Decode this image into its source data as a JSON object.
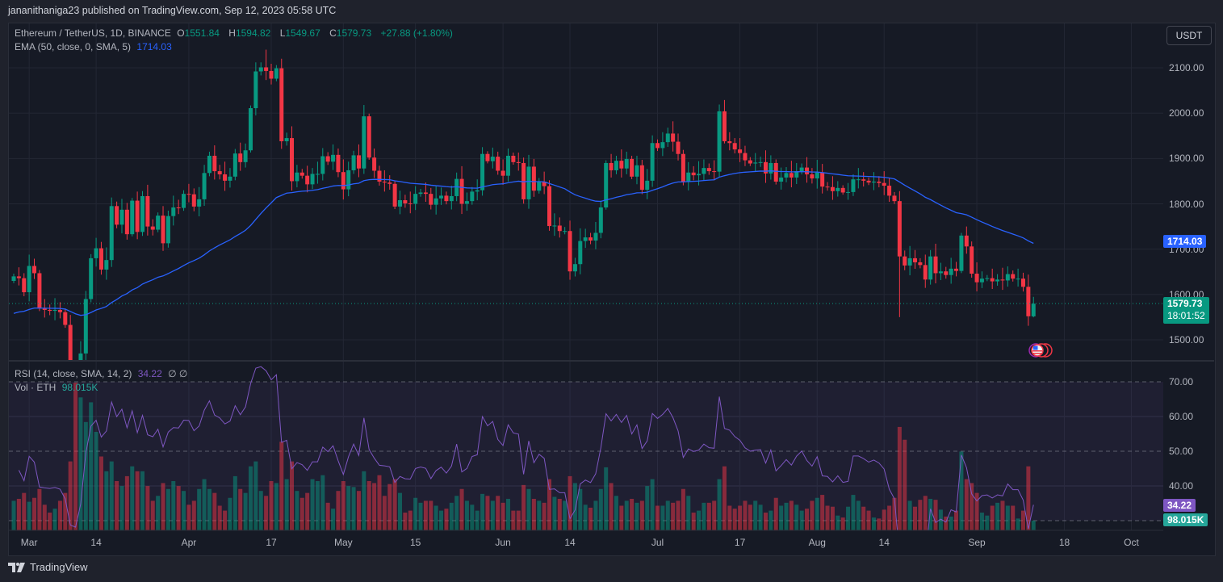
{
  "publisher_line": "jananithaniga23 published on TradingView.com, Sep 12, 2023 05:58 UTC",
  "legend": {
    "symbol": "Ethereum / TetherUS, 1D, BINANCE",
    "o_label": "O",
    "o": "1551.84",
    "h_label": "H",
    "h": "1594.82",
    "l_label": "L",
    "l": "1549.67",
    "c_label": "C",
    "c": "1579.73",
    "change": "+27.88 (+1.80%)",
    "ema_label": "EMA (50, close, 0, SMA, 5)",
    "ema_value": "1714.03",
    "rsi_label": "RSI (14, close, SMA, 14, 2)",
    "rsi_value": "34.22",
    "rsi_extra": "∅ ∅",
    "vol_label": "Vol · ETH",
    "vol_value": "98.015K"
  },
  "currency_button": "USDT",
  "price_axis": [
    "2100.00",
    "2000.00",
    "1900.00",
    "1800.00",
    "1700.00",
    "1600.00",
    "1500.00"
  ],
  "rsi_axis": [
    "70.00",
    "60.00",
    "50.00",
    "40.00"
  ],
  "tags": {
    "ema": "1714.03",
    "last_price": "1579.73",
    "countdown": "18:01:52",
    "rsi": "34.22",
    "volume": "98.015K"
  },
  "x_axis": [
    {
      "label": "Mar",
      "day": 3
    },
    {
      "label": "14",
      "day": 16
    },
    {
      "label": "Apr",
      "day": 34
    },
    {
      "label": "17",
      "day": 50
    },
    {
      "label": "May",
      "day": 64
    },
    {
      "label": "15",
      "day": 78
    },
    {
      "label": "Jun",
      "day": 95
    },
    {
      "label": "14",
      "day": 108
    },
    {
      "label": "Jul",
      "day": 125
    },
    {
      "label": "17",
      "day": 141
    },
    {
      "label": "Aug",
      "day": 156
    },
    {
      "label": "14",
      "day": 169
    },
    {
      "label": "Sep",
      "day": 187
    },
    {
      "label": "18",
      "day": 204
    },
    {
      "label": "Oct",
      "day": 217
    }
  ],
  "footer_logo": "TradingView",
  "colors": {
    "up": "#089981",
    "down": "#f23645",
    "ema": "#2962ff",
    "rsi": "#7e57c2",
    "volume_tag": "#26a69a"
  },
  "chart_data": {
    "type": "candlestick",
    "title": "Ethereum / TetherUS, 1D, BINANCE",
    "start_date": "2023-02-26",
    "end_date": "2023-09-12",
    "ylim": [
      1450,
      2160
    ],
    "rsi_ylim": [
      27,
      76
    ],
    "ema_start": 1555,
    "first_open": 1630,
    "last_candle": {
      "o": 1551.84,
      "h": 1594.82,
      "l": 1549.67,
      "c": 1579.73
    },
    "closes": [
      1640,
      1636,
      1605,
      1663,
      1647,
      1569,
      1566,
      1564,
      1566,
      1561,
      1533,
      1438,
      1429,
      1470,
      1590,
      1680,
      1702,
      1655,
      1676,
      1795,
      1754,
      1787,
      1733,
      1807,
      1738,
      1817,
      1750,
      1743,
      1774,
      1713,
      1773,
      1792,
      1791,
      1822,
      1821,
      1794,
      1810,
      1868,
      1906,
      1872,
      1865,
      1851,
      1860,
      1911,
      1892,
      1918,
      2011,
      2092,
      2101,
      2093,
      2076,
      2099,
      1938,
      1945,
      1850,
      1869,
      1862,
      1843,
      1866,
      1866,
      1905,
      1893,
      1908,
      1870,
      1832,
      1874,
      1907,
      1878,
      1993,
      1902,
      1873,
      1849,
      1847,
      1844,
      1794,
      1808,
      1801,
      1800,
      1822,
      1825,
      1822,
      1798,
      1812,
      1818,
      1806,
      1817,
      1855,
      1800,
      1806,
      1827,
      1830,
      1910,
      1894,
      1904,
      1873,
      1862,
      1906,
      1892,
      1890,
      1810,
      1882,
      1829,
      1849,
      1839,
      1751,
      1752,
      1740,
      1740,
      1651,
      1667,
      1718,
      1726,
      1719,
      1736,
      1792,
      1890,
      1874,
      1895,
      1878,
      1899,
      1860,
      1885,
      1831,
      1851,
      1934,
      1923,
      1936,
      1955,
      1937,
      1910,
      1848,
      1869,
      1863,
      1866,
      1879,
      1872,
      1871,
      2004,
      1938,
      1934,
      1920,
      1912,
      1896,
      1889,
      1891,
      1892,
      1867,
      1890,
      1849,
      1858,
      1868,
      1858,
      1872,
      1880,
      1865,
      1856,
      1869,
      1838,
      1837,
      1828,
      1835,
      1825,
      1826,
      1854,
      1854,
      1851,
      1847,
      1849,
      1846,
      1840,
      1818,
      1806,
      1684,
      1664,
      1680,
      1671,
      1665,
      1633,
      1684,
      1647,
      1651,
      1643,
      1657,
      1652,
      1730,
      1706,
      1646,
      1627,
      1635,
      1636,
      1629,
      1633,
      1631,
      1645,
      1635,
      1635,
      1617,
      1552,
      1579.73
    ],
    "notable_highs": {
      "49": 2140,
      "138": 2029,
      "68": 2018,
      "198": 1594.82
    },
    "notable_lows": {
      "12": 1370,
      "172": 1550,
      "197": 1531,
      "198": 1549.67
    },
    "volume_k": [
      300,
      320,
      380,
      290,
      330,
      420,
      260,
      180,
      220,
      300,
      380,
      700,
      1500,
      1350,
      1100,
      1300,
      1000,
      750,
      600,
      700,
      500,
      450,
      550,
      650,
      600,
      600,
      450,
      300,
      350,
      480,
      420,
      500,
      450,
      400,
      260,
      300,
      420,
      520,
      420,
      380,
      250,
      200,
      330,
      550,
      420,
      380,
      650,
      700,
      400,
      350,
      500,
      480,
      900,
      520,
      700,
      400,
      330,
      380,
      520,
      500,
      560,
      280,
      220,
      400,
      500,
      450,
      440,
      400,
      600,
      500,
      480,
      560,
      350,
      470,
      520,
      380,
      180,
      200,
      330,
      280,
      300,
      300,
      250,
      200,
      220,
      280,
      350,
      420,
      300,
      260,
      200,
      370,
      350,
      300,
      350,
      280,
      320,
      200,
      200,
      460,
      420,
      320,
      300,
      280,
      520,
      340,
      320,
      300,
      550,
      480,
      420,
      260,
      230,
      300,
      420,
      640,
      480,
      350,
      250,
      300,
      320,
      280,
      300,
      450,
      520,
      250,
      250,
      300,
      280,
      300,
      420,
      350,
      180,
      200,
      280,
      280,
      300,
      520,
      650,
      250,
      220,
      250,
      300,
      260,
      300,
      260,
      180,
      200,
      330,
      250,
      280,
      300,
      260,
      200,
      220,
      300,
      330,
      360,
      250,
      240,
      150,
      130,
      240,
      360,
      300,
      240,
      200,
      130,
      120,
      210,
      250,
      330,
      1050,
      920,
      300,
      240,
      310,
      350,
      320,
      310,
      210,
      140,
      140,
      200,
      800,
      520,
      480,
      380,
      180,
      150,
      250,
      280,
      300,
      250,
      250,
      120,
      200,
      650,
      98.015
    ],
    "indicators": [
      "EMA 50",
      "RSI 14",
      "Volume"
    ]
  }
}
